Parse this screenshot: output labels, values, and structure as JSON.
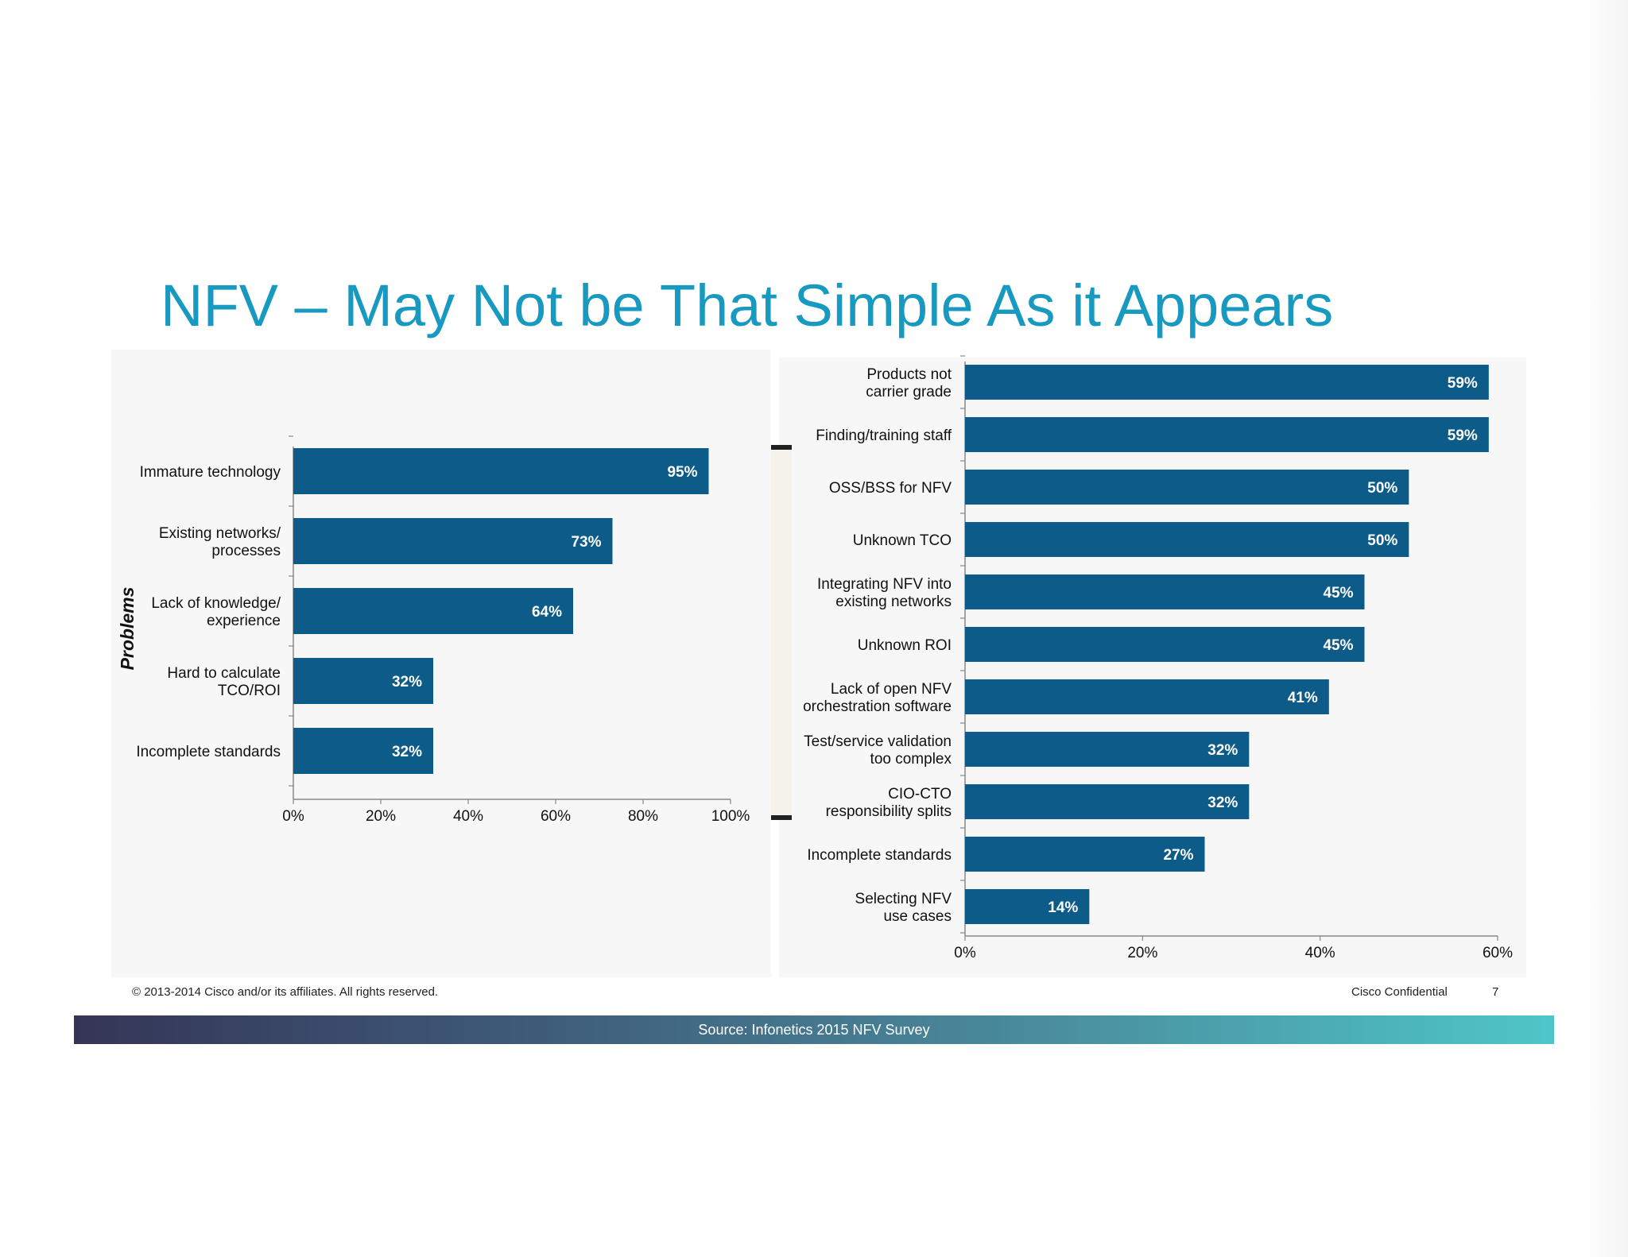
{
  "title": "NFV – May Not be That Simple As it Appears",
  "footer": {
    "copyright": "© 2013-2014  Cisco and/or its affiliates. All rights reserved.",
    "confidential": "Cisco Confidential",
    "page": "7",
    "source": "Source: Infonetics 2015 NFV Survey"
  },
  "colors": {
    "bar": "#0d5b88",
    "title": "#1799c0"
  },
  "chart_data": [
    {
      "type": "bar",
      "orientation": "horizontal",
      "ylabel": "Problems",
      "xlabel": "",
      "xlim": [
        0,
        100
      ],
      "xticks": [
        "0%",
        "20%",
        "40%",
        "60%",
        "80%",
        "100%"
      ],
      "categories": [
        [
          "Immature technology"
        ],
        [
          "Existing networks/",
          "processes"
        ],
        [
          "Lack of knowledge/",
          "experience"
        ],
        [
          "Hard to calculate",
          "TCO/ROI"
        ],
        [
          "Incomplete standards"
        ]
      ],
      "values": [
        95,
        73,
        64,
        32,
        32
      ],
      "labels": [
        "95%",
        "73%",
        "64%",
        "32%",
        "32%"
      ]
    },
    {
      "type": "bar",
      "orientation": "horizontal",
      "xlabel": "",
      "ylabel": "",
      "xlim": [
        0,
        60
      ],
      "xticks": [
        "0%",
        "20%",
        "40%",
        "60%"
      ],
      "categories": [
        [
          "Products not",
          "carrier grade"
        ],
        [
          "Finding/training staff"
        ],
        [
          "OSS/BSS for NFV"
        ],
        [
          "Unknown TCO"
        ],
        [
          "Integrating NFV into",
          "existing networks"
        ],
        [
          "Unknown ROI"
        ],
        [
          "Lack of open NFV",
          "orchestration software"
        ],
        [
          "Test/service validation",
          "too complex"
        ],
        [
          "CIO-CTO",
          "responsibility splits"
        ],
        [
          "Incomplete standards"
        ],
        [
          "Selecting NFV",
          "use cases"
        ]
      ],
      "values": [
        59,
        59,
        50,
        50,
        45,
        45,
        41,
        32,
        32,
        27,
        14
      ],
      "labels": [
        "59%",
        "59%",
        "50%",
        "50%",
        "45%",
        "45%",
        "41%",
        "32%",
        "32%",
        "27%",
        "14%"
      ]
    }
  ]
}
